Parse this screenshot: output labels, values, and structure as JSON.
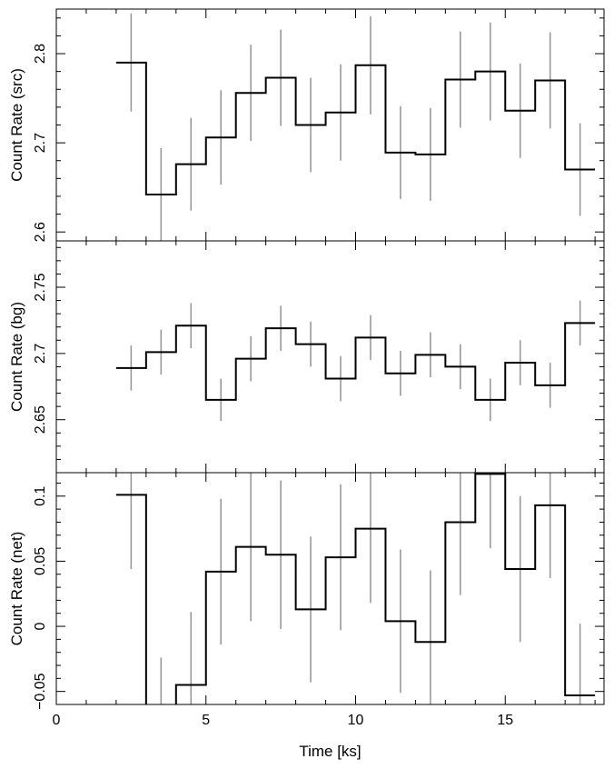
{
  "chart_data": [
    {
      "type": "line",
      "ylabel": "Count Rate (src)",
      "xlim": [
        0,
        18.3
      ],
      "ylim": [
        2.59,
        2.85
      ],
      "yticks": [
        "2.6",
        "2.7",
        "2.8"
      ],
      "ytick_values": [
        2.6,
        2.7,
        2.8
      ],
      "x": [
        2.5,
        3.5,
        4.5,
        5.5,
        6.5,
        7.5,
        8.5,
        9.5,
        10.5,
        11.5,
        12.5,
        13.5,
        14.5,
        15.5,
        16.5,
        17.5
      ],
      "values": [
        2.79,
        2.642,
        2.676,
        2.706,
        2.756,
        2.773,
        2.72,
        2.734,
        2.787,
        2.689,
        2.687,
        2.771,
        2.78,
        2.736,
        2.77,
        2.67
      ],
      "err": [
        0.055,
        0.052,
        0.052,
        0.053,
        0.054,
        0.054,
        0.053,
        0.054,
        0.055,
        0.052,
        0.052,
        0.054,
        0.055,
        0.053,
        0.054,
        0.052
      ],
      "bin_width": 1,
      "color": "#000000",
      "errcolor": "#999999"
    },
    {
      "type": "line",
      "ylabel": "Count Rate (bg)",
      "xlim": [
        0,
        18.3
      ],
      "ylim": [
        2.61,
        2.785
      ],
      "yticks": [
        "2.65",
        "2.7",
        "2.75"
      ],
      "ytick_values": [
        2.65,
        2.7,
        2.75
      ],
      "x": [
        2.5,
        3.5,
        4.5,
        5.5,
        6.5,
        7.5,
        8.5,
        9.5,
        10.5,
        11.5,
        12.5,
        13.5,
        14.5,
        15.5,
        16.5,
        17.5
      ],
      "values": [
        2.689,
        2.701,
        2.721,
        2.665,
        2.696,
        2.719,
        2.707,
        2.681,
        2.712,
        2.685,
        2.699,
        2.69,
        2.665,
        2.693,
        2.676,
        2.723
      ],
      "err": [
        0.017,
        0.017,
        0.017,
        0.016,
        0.017,
        0.017,
        0.017,
        0.017,
        0.017,
        0.017,
        0.017,
        0.017,
        0.016,
        0.017,
        0.017,
        0.017
      ],
      "bin_width": 1,
      "color": "#000000",
      "errcolor": "#999999"
    },
    {
      "type": "line",
      "ylabel": "Count Rate (net)",
      "xlabel": "Time [ks]",
      "xlim": [
        0,
        18.3
      ],
      "ylim": [
        -0.06,
        0.118
      ],
      "xticks": [
        "0",
        "5",
        "10",
        "15"
      ],
      "xtick_values": [
        0,
        5,
        10,
        15
      ],
      "yticks": [
        "−0.05",
        "0",
        "0.05",
        "0.1"
      ],
      "ytick_values": [
        -0.05,
        0,
        0.05,
        0.1
      ],
      "x": [
        2.5,
        3.5,
        4.5,
        5.5,
        6.5,
        7.5,
        8.5,
        9.5,
        10.5,
        11.5,
        12.5,
        13.5,
        14.5,
        15.5,
        16.5,
        17.5
      ],
      "values": [
        0.101,
        -0.079,
        -0.045,
        0.042,
        0.061,
        0.055,
        0.013,
        0.053,
        0.075,
        0.004,
        -0.012,
        0.08,
        0.117,
        0.044,
        0.093,
        -0.053
      ],
      "err": [
        0.057,
        0.055,
        0.056,
        0.056,
        0.057,
        0.057,
        0.056,
        0.056,
        0.057,
        0.055,
        0.055,
        0.056,
        0.057,
        0.056,
        0.056,
        0.055
      ],
      "bin_width": 1,
      "color": "#000000",
      "errcolor": "#999999"
    }
  ]
}
